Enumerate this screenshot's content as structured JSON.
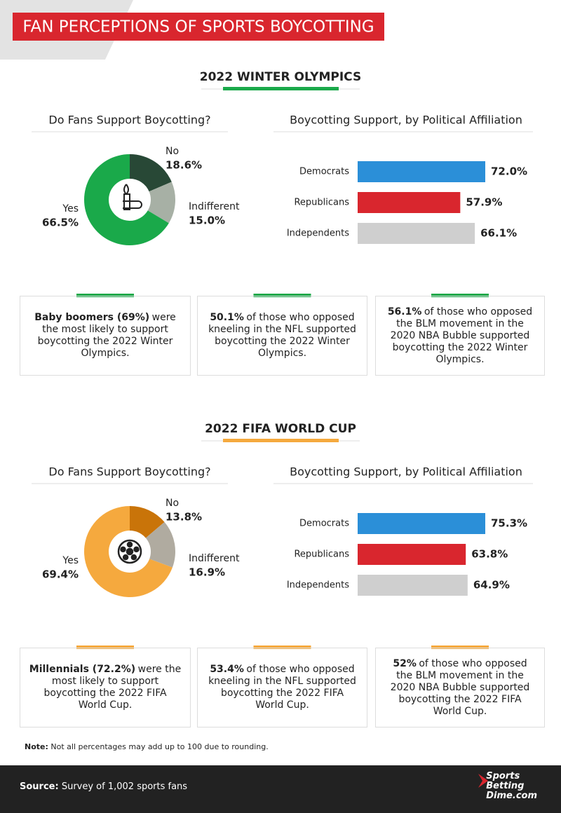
{
  "title": "FAN PERCEPTIONS OF SPORTS BOYCOTTING",
  "sections": [
    {
      "heading": "2022 WINTER OLYMPICS",
      "color": "#1aa94a",
      "facts": [
        {
          "bold": "Baby boomers (69%)",
          "text": "were the most likely to support boycotting the 2022 Winter Olympics."
        },
        {
          "bold": "50.1%",
          "text": "of those who opposed kneeling in the NFL supported boycotting the 2022 Winter Olympics."
        },
        {
          "bold": "56.1%",
          "text": "of those who opposed the BLM movement in the 2020 NBA Bubble supported boycotting the 2022 Winter Olympics."
        }
      ]
    },
    {
      "heading": "2022 FIFA WORLD CUP",
      "color": "#f5a93e",
      "facts": [
        {
          "bold": "Millennials (72.2%)",
          "text": "were the most likely to support boycotting the 2022 FIFA World Cup."
        },
        {
          "bold": "53.4%",
          "text": "of those who opposed kneeling in the NFL supported boycotting the 2022 FIFA World Cup."
        },
        {
          "bold": "52%",
          "text": "of those who opposed the BLM movement in the 2020 NBA Bubble supported boycotting the 2022 FIFA World Cup."
        }
      ]
    }
  ],
  "chart_data": [
    {
      "type": "pie",
      "title": "Do Fans Support Boycotting?",
      "categories": [
        "No",
        "Indifferent",
        "Yes"
      ],
      "values": [
        18.6,
        15.0,
        66.5
      ],
      "value_labels": [
        "18.6%",
        "15.0%",
        "66.5%"
      ],
      "colors": [
        "#284836",
        "#a7b0a5",
        "#1aa94a"
      ]
    },
    {
      "type": "bar",
      "orientation": "horizontal",
      "title": "Boycotting Support, by Political Affiliation",
      "categories": [
        "Democrats",
        "Republicans",
        "Independents"
      ],
      "values": [
        72.0,
        57.9,
        66.1
      ],
      "value_labels": [
        "72.0%",
        "57.9%",
        "66.1%"
      ],
      "colors": [
        "#2b8fd8",
        "#d9262e",
        "#cfcfcf"
      ]
    },
    {
      "type": "pie",
      "title": "Do Fans Support Boycotting?",
      "categories": [
        "No",
        "Indifferent",
        "Yes"
      ],
      "values": [
        13.8,
        16.9,
        69.4
      ],
      "value_labels": [
        "13.8%",
        "16.9%",
        "69.4%"
      ],
      "colors": [
        "#c97409",
        "#b0aba0",
        "#f5a93e"
      ]
    },
    {
      "type": "bar",
      "orientation": "horizontal",
      "title": "Boycotting Support, by Political Affiliation",
      "categories": [
        "Democrats",
        "Republicans",
        "Independents"
      ],
      "values": [
        75.3,
        63.8,
        64.9
      ],
      "value_labels": [
        "75.3%",
        "63.8%",
        "64.9%"
      ],
      "colors": [
        "#2b8fd8",
        "#d9262e",
        "#cfcfcf"
      ]
    }
  ],
  "note": {
    "bold": "Note:",
    "text": "Not all percentages may add up to 100 due to rounding."
  },
  "source": {
    "bold": "Source:",
    "text": "Survey of 1,002 sports fans"
  },
  "logo": [
    "Sports",
    "Betting",
    "Dime.com"
  ]
}
